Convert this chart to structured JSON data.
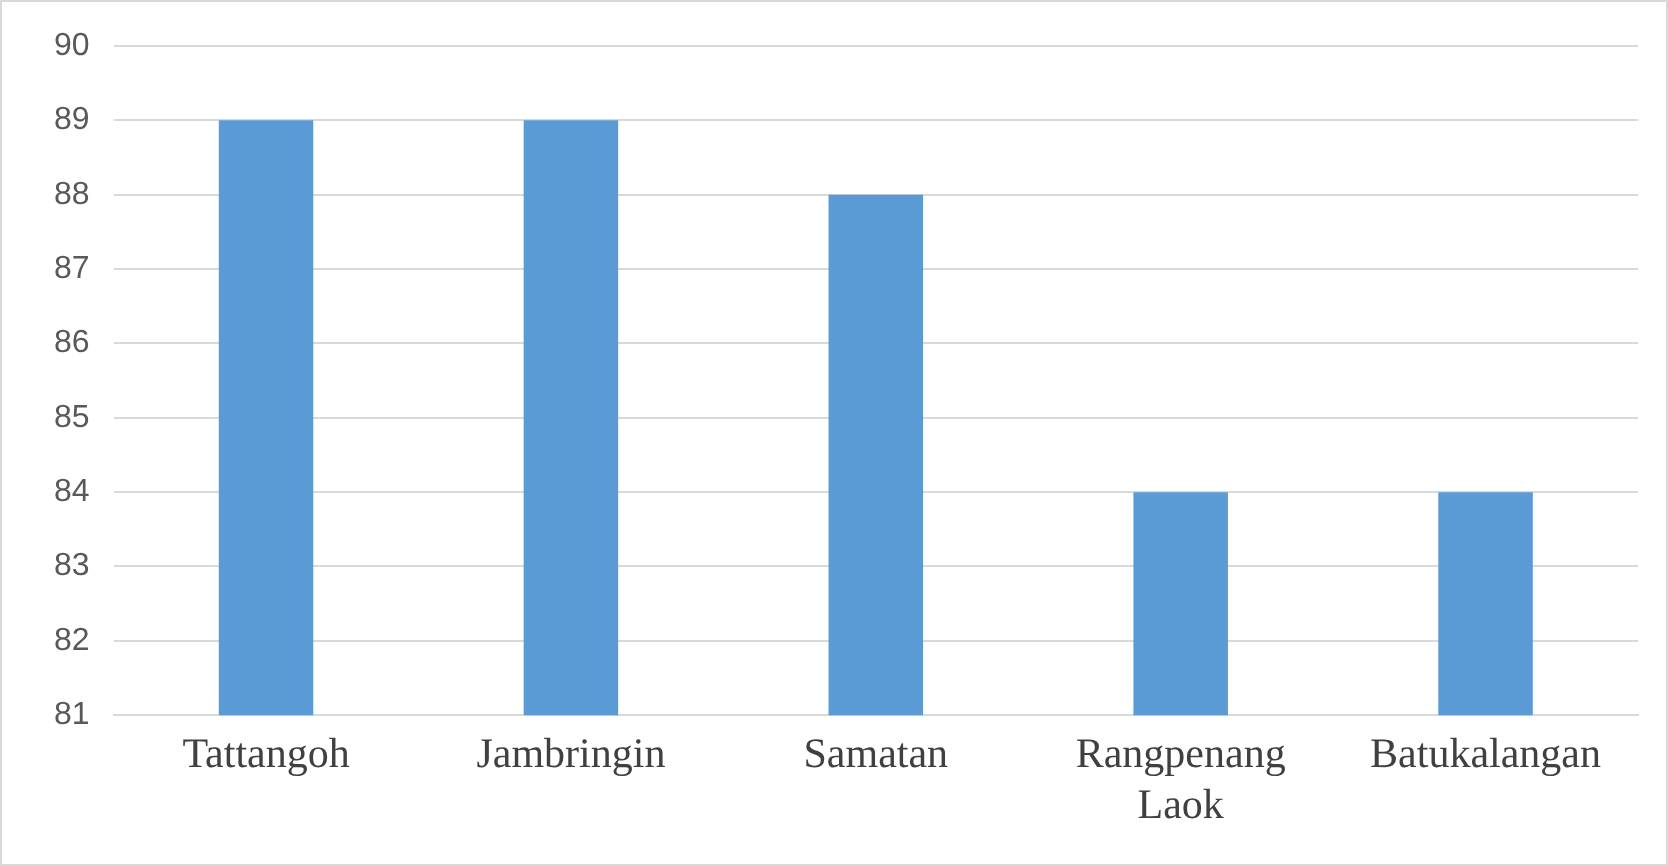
{
  "chart_data": {
    "type": "bar",
    "categories": [
      "Tattangoh",
      "Jambringin",
      "Samatan",
      "Rangpenang Laok",
      "Batukalangan"
    ],
    "values": [
      89,
      89,
      88,
      84,
      84
    ],
    "color": "#5b9bd5",
    "ylim": [
      81,
      90
    ],
    "yticks": [
      81,
      82,
      83,
      84,
      85,
      86,
      87,
      88,
      89,
      90
    ],
    "grid": "y",
    "legend": false
  }
}
